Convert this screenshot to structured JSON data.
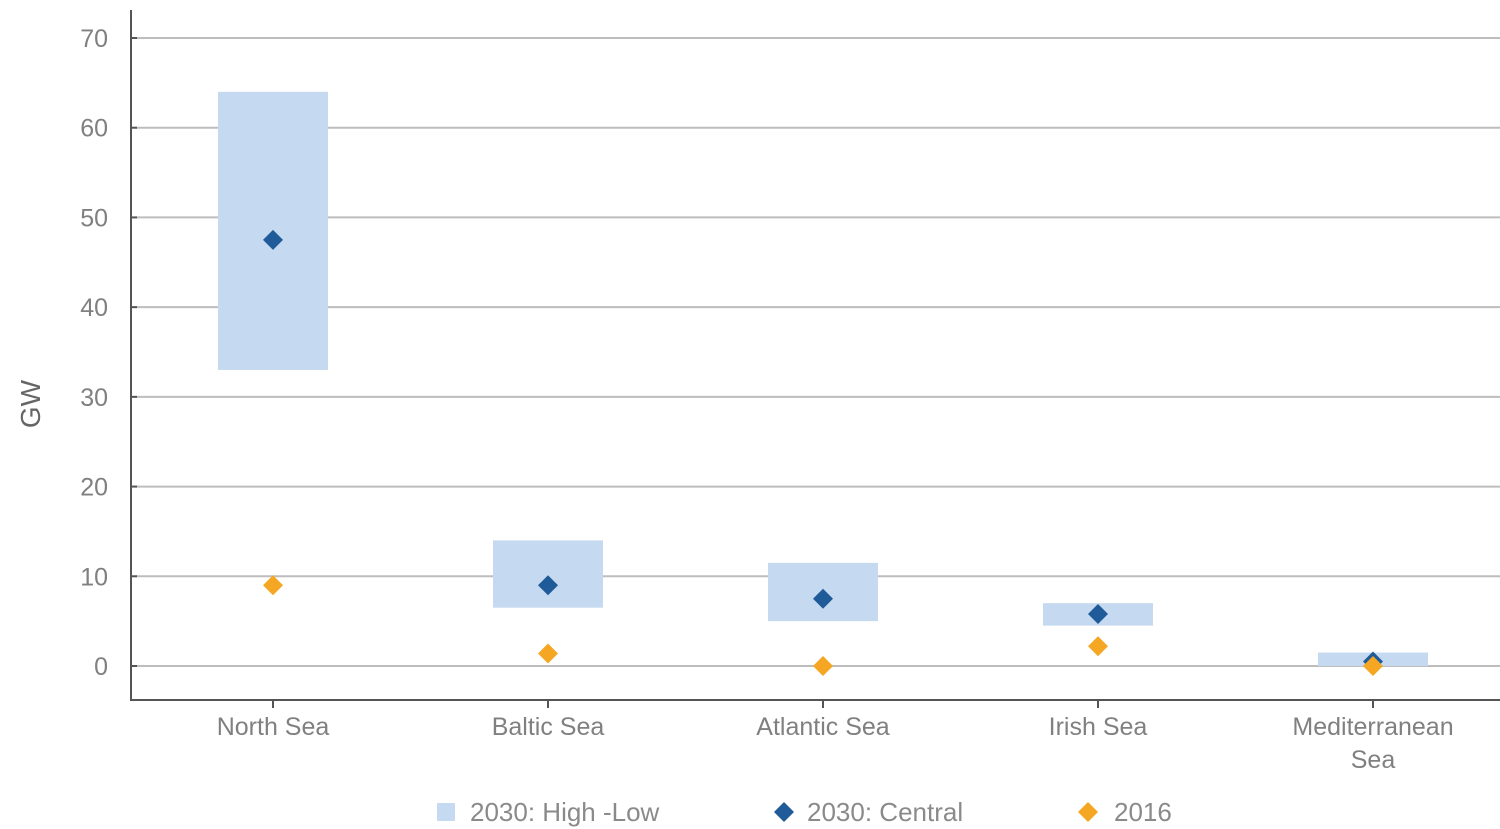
{
  "chart_data": {
    "type": "range-dot",
    "ylabel": "GW",
    "ylim": [
      0,
      70
    ],
    "yticks": [
      0,
      10,
      20,
      30,
      40,
      50,
      60,
      70
    ],
    "grid": true,
    "legend_position": "bottom",
    "categories": [
      [
        "North Sea"
      ],
      [
        "Baltic Sea"
      ],
      [
        "Atlantic Sea"
      ],
      [
        "Irish Sea"
      ],
      [
        "Mediterranean",
        "Sea"
      ]
    ],
    "series": [
      {
        "name": "2030: High -Low",
        "kind": "range",
        "color": "#c5d9f0",
        "low": [
          33,
          6.5,
          5,
          4.5,
          0
        ],
        "high": [
          64,
          14,
          11.5,
          7,
          1.5
        ]
      },
      {
        "name": "2030: Central",
        "kind": "marker",
        "color": "#1f5b99",
        "values": [
          47.5,
          9,
          7.5,
          5.8,
          0.5
        ]
      },
      {
        "name": "2016",
        "kind": "marker",
        "color": "#f5a623",
        "values": [
          9,
          1.4,
          0,
          2.2,
          0
        ]
      }
    ]
  }
}
